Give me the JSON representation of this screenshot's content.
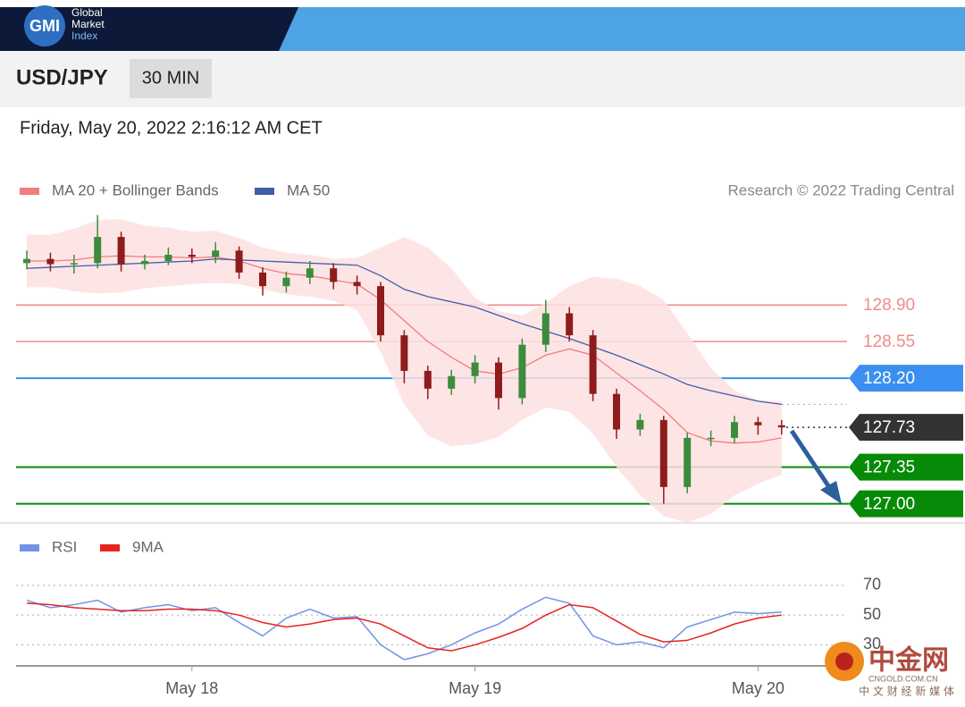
{
  "header": {
    "logo": "GMI",
    "brand": [
      "Global",
      "Market",
      "Index"
    ]
  },
  "symbol": "USD/JPY",
  "timeframe": "30 MIN",
  "timestamp": "Friday, May 20, 2022 2:16:12 AM CET",
  "watermark": {
    "name": "中金网",
    "site": "CNGOLD.COM.CN",
    "slogan": "中 文 财 经 新 媒 体"
  },
  "chart_data": [
    {
      "type": "candlestick",
      "copyright": "Research © 2022 Trading Central",
      "categories": [
        null,
        null,
        null,
        null,
        null,
        null,
        null,
        "May 18",
        null,
        null,
        null,
        null,
        null,
        null,
        null,
        null,
        null,
        null,
        null,
        "May 19",
        null,
        null,
        null,
        null,
        null,
        null,
        null,
        null,
        null,
        null,
        null,
        "May 20",
        null
      ],
      "open": [
        129.3,
        129.34,
        129.29,
        129.3,
        129.55,
        129.29,
        129.32,
        129.38,
        129.36,
        129.42,
        129.21,
        129.08,
        129.16,
        129.25,
        129.12,
        129.08,
        128.61,
        128.27,
        128.1,
        128.22,
        128.35,
        128.01,
        128.52,
        128.82,
        128.61,
        128.05,
        127.71,
        127.8,
        127.16,
        127.63,
        127.63,
        127.78,
        127.75
      ],
      "high": [
        129.42,
        129.4,
        129.38,
        129.76,
        129.6,
        129.38,
        129.45,
        129.44,
        129.5,
        129.46,
        129.26,
        129.22,
        129.32,
        129.3,
        129.18,
        129.12,
        128.66,
        128.32,
        128.28,
        128.42,
        128.4,
        128.58,
        128.95,
        128.88,
        128.66,
        128.1,
        127.86,
        127.84,
        127.68,
        127.7,
        127.84,
        127.83,
        127.8
      ],
      "low": [
        129.24,
        129.22,
        129.2,
        129.25,
        129.22,
        129.24,
        129.28,
        129.3,
        129.3,
        129.15,
        128.99,
        129.02,
        129.1,
        129.05,
        129.0,
        128.55,
        128.15,
        128.0,
        128.04,
        128.15,
        127.9,
        127.95,
        128.45,
        128.55,
        127.98,
        127.62,
        127.65,
        127.0,
        127.1,
        127.55,
        127.58,
        127.66,
        127.66
      ],
      "close": [
        129.34,
        129.29,
        129.3,
        129.55,
        129.29,
        129.32,
        129.38,
        129.36,
        129.42,
        129.21,
        129.08,
        129.16,
        129.25,
        129.12,
        129.08,
        128.61,
        128.27,
        128.1,
        128.22,
        128.35,
        128.01,
        128.52,
        128.82,
        128.61,
        128.05,
        127.71,
        127.8,
        127.16,
        127.63,
        127.63,
        127.78,
        127.75,
        127.73
      ],
      "up_color": "#3d8b3d",
      "down_color": "#8e1c1c",
      "overlays": [
        {
          "name": "MA 20 + Bollinger Bands",
          "color": "#f47c7c",
          "band_color": "#fde1e1",
          "values": [
            129.32,
            129.32,
            129.33,
            129.36,
            129.37,
            129.36,
            129.36,
            129.35,
            129.36,
            129.32,
            129.25,
            129.2,
            129.18,
            129.14,
            129.1,
            128.95,
            128.75,
            128.55,
            128.4,
            128.27,
            128.24,
            128.3,
            128.42,
            128.48,
            128.42,
            128.25,
            128.08,
            127.9,
            127.68,
            127.6,
            127.58,
            127.59,
            127.63
          ],
          "upper": [
            129.57,
            129.57,
            129.63,
            129.71,
            129.72,
            129.66,
            129.64,
            129.6,
            129.61,
            129.54,
            129.45,
            129.4,
            129.38,
            129.34,
            129.35,
            129.45,
            129.55,
            129.45,
            129.25,
            128.97,
            128.84,
            128.8,
            128.92,
            129.08,
            129.17,
            129.15,
            129.08,
            128.95,
            128.63,
            128.3,
            128.08,
            127.99,
            127.98
          ],
          "lower": [
            129.07,
            129.07,
            129.03,
            129.01,
            129.02,
            129.06,
            129.08,
            129.1,
            129.11,
            129.1,
            129.05,
            129.0,
            128.98,
            128.94,
            128.85,
            128.45,
            127.95,
            127.65,
            127.55,
            127.57,
            127.64,
            127.8,
            127.92,
            127.88,
            127.67,
            127.35,
            127.08,
            126.88,
            126.82,
            126.9,
            127.08,
            127.19,
            127.28
          ]
        },
        {
          "name": "MA 50",
          "color": "#3f5fa8",
          "values": [
            129.25,
            129.26,
            129.27,
            129.28,
            129.29,
            129.3,
            129.31,
            129.32,
            129.34,
            129.33,
            129.32,
            129.31,
            129.3,
            129.29,
            129.28,
            129.18,
            129.05,
            128.98,
            128.93,
            128.88,
            128.8,
            128.72,
            128.65,
            128.58,
            128.5,
            128.42,
            128.33,
            128.24,
            128.14,
            128.08,
            128.03,
            127.98,
            127.95
          ]
        }
      ],
      "levels": [
        {
          "value": 128.9,
          "label": "128.90",
          "color": "#f08a8a",
          "boxed": false,
          "dashed": false
        },
        {
          "value": 128.55,
          "label": "128.55",
          "color": "#f08a8a",
          "boxed": false,
          "dashed": false
        },
        {
          "value": 128.2,
          "label": "128.20",
          "color": "#3b8ff0",
          "boxed": true,
          "dashed": false
        },
        {
          "value": 127.73,
          "label": "127.73",
          "color": "#333333",
          "boxed": true,
          "dashed": true
        },
        {
          "value": 127.35,
          "label": "127.35",
          "color": "#078a07",
          "boxed": true,
          "dashed": false
        },
        {
          "value": 127.0,
          "label": "127.00",
          "color": "#078a07",
          "boxed": true,
          "dashed": false
        }
      ],
      "ylim": [
        126.8,
        129.85
      ]
    },
    {
      "type": "line",
      "series": [
        {
          "name": "RSI",
          "color": "#7393e6",
          "values": [
            60,
            55,
            57,
            60,
            52,
            55,
            57,
            53,
            55,
            45,
            36,
            48,
            54,
            48,
            49,
            30,
            20,
            24,
            30,
            38,
            44,
            54,
            62,
            58,
            36,
            30,
            32,
            28,
            42,
            47,
            52,
            51,
            52
          ]
        },
        {
          "name": "9MA",
          "color": "#e8231e",
          "values": [
            58,
            57,
            55,
            54,
            53,
            53,
            54,
            54,
            53,
            50,
            45,
            42,
            44,
            47,
            48,
            44,
            36,
            28,
            26,
            30,
            35,
            41,
            50,
            57,
            55,
            46,
            37,
            32,
            33,
            38,
            44,
            48,
            50
          ]
        }
      ],
      "ylim": [
        14,
        79
      ],
      "yticks": [
        30,
        50,
        70
      ],
      "grid": true
    }
  ]
}
